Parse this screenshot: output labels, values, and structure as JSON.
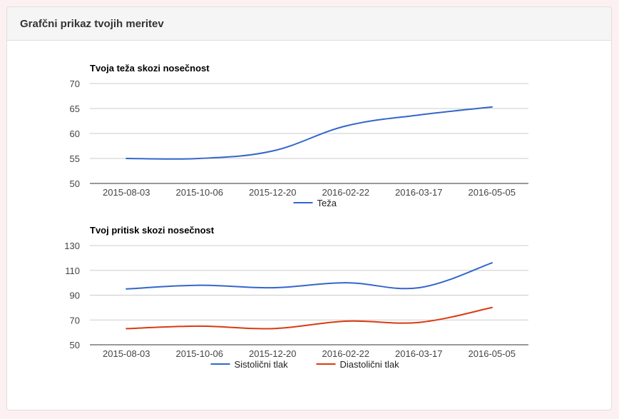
{
  "panel": {
    "title": "Grafčni prikaz tvojih meritev"
  },
  "chart_data": [
    {
      "type": "line",
      "title": "Tvoja teža skozi nosečnost",
      "categories": [
        "2015-08-03",
        "2015-10-06",
        "2015-12-20",
        "2016-02-22",
        "2016-03-17",
        "2016-05-05"
      ],
      "series": [
        {
          "name": "Teža",
          "color": "#3366cc",
          "values": [
            55,
            55,
            56.5,
            61.5,
            63.7,
            65.3
          ]
        }
      ],
      "ylim": [
        50,
        70
      ],
      "yticks": [
        50,
        55,
        60,
        65,
        70
      ],
      "grid": true,
      "legend": "bottom"
    },
    {
      "type": "line",
      "title": "Tvoj pritisk skozi nosečnost",
      "categories": [
        "2015-08-03",
        "2015-10-06",
        "2015-12-20",
        "2016-02-22",
        "2016-03-17",
        "2016-05-05"
      ],
      "series": [
        {
          "name": "Sistolični tlak",
          "color": "#3366cc",
          "values": [
            95,
            98,
            96,
            100,
            96,
            116
          ]
        },
        {
          "name": "Diastolični tlak",
          "color": "#dc3912",
          "values": [
            63,
            65,
            63,
            69,
            68,
            80
          ]
        }
      ],
      "ylim": [
        50,
        130
      ],
      "yticks": [
        50,
        70,
        90,
        110,
        130
      ],
      "grid": true,
      "legend": "bottom"
    }
  ]
}
